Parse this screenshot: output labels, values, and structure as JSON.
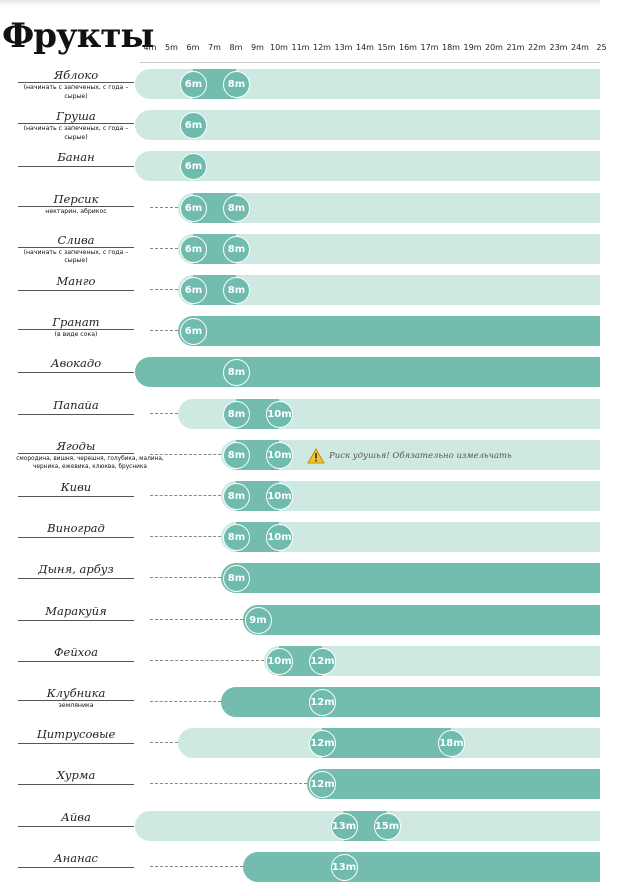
{
  "title": "Фрукты",
  "colors": {
    "light_bar": "#cde9e1",
    "dark_bar": "#74bcae",
    "marker": "#6fbcae"
  },
  "chart_data": {
    "type": "timeline",
    "x_axis_ticks": [
      "4m",
      "5m",
      "6m",
      "7m",
      "8m",
      "9m",
      "10m",
      "11m",
      "12m",
      "13m",
      "14m",
      "15m",
      "16m",
      "17m",
      "18m",
      "19m",
      "20m",
      "21m",
      "22m",
      "23m",
      "24m",
      "25"
    ],
    "rows": [
      {
        "name": "Яблоко",
        "note": "(начинать с запеченых, с года – сырые)",
        "bar_start": 4,
        "bar_color": "light",
        "markers": [
          "6m",
          "8m"
        ]
      },
      {
        "name": "Груша",
        "note": "(начинать с запеченых, с года – сырые)",
        "bar_start": 4,
        "bar_color": "light",
        "markers": [
          "6m"
        ]
      },
      {
        "name": "Банан",
        "note": "",
        "bar_start": 4,
        "bar_color": "light",
        "markers": [
          "6m"
        ]
      },
      {
        "name": "Персик",
        "note": "нектарин, абрикос",
        "bar_start": 6,
        "bar_color": "light",
        "markers": [
          "6m",
          "8m"
        ]
      },
      {
        "name": "Слива",
        "note": "(начинать с запеченых, с года – сырые)",
        "bar_start": 6,
        "bar_color": "light",
        "markers": [
          "6m",
          "8m"
        ]
      },
      {
        "name": "Манго",
        "note": "",
        "bar_start": 6,
        "bar_color": "light",
        "markers": [
          "6m",
          "8m"
        ]
      },
      {
        "name": "Гранат",
        "note": "(в виде сока)",
        "bar_start": 6,
        "bar_color": "dark",
        "markers": [
          "6m"
        ]
      },
      {
        "name": "Авокадо",
        "note": "",
        "bar_start": 4,
        "bar_color": "dark",
        "markers": [
          "8m"
        ]
      },
      {
        "name": "Папайа",
        "note": "",
        "bar_start": 6,
        "bar_color": "light",
        "markers": [
          "8m",
          "10m"
        ]
      },
      {
        "name": "Ягоды",
        "note": "смородина, вишня, черешня, голубика, малина, черника, ежевика, клюква, брусника",
        "bar_start": 8,
        "bar_color": "light",
        "markers": [
          "8m",
          "10m"
        ],
        "warning": "Риск удушья! Обязательно измельчать"
      },
      {
        "name": "Киви",
        "note": "",
        "bar_start": 8,
        "bar_color": "light",
        "markers": [
          "8m",
          "10m"
        ]
      },
      {
        "name": "Виноград",
        "note": "",
        "bar_start": 8,
        "bar_color": "light",
        "markers": [
          "8m",
          "10m"
        ]
      },
      {
        "name": "Дыня, арбуз",
        "note": "",
        "bar_start": 8,
        "bar_color": "dark",
        "markers": [
          "8m"
        ]
      },
      {
        "name": "Маракуйя",
        "note": "",
        "bar_start": 9,
        "bar_color": "dark",
        "markers": [
          "9m"
        ]
      },
      {
        "name": "Фейхоа",
        "note": "",
        "bar_start": 10,
        "bar_color": "light",
        "markers": [
          "10m",
          "12m"
        ]
      },
      {
        "name": "Клубника",
        "note": "земляника",
        "bar_start": 8,
        "bar_color": "dark",
        "markers": [
          "12m"
        ]
      },
      {
        "name": "Цитрусовые",
        "note": "",
        "bar_start": 6,
        "bar_color": "light",
        "markers": [
          "12m",
          "18m"
        ]
      },
      {
        "name": "Хурма",
        "note": "",
        "bar_start": 12,
        "bar_color": "dark",
        "markers": [
          "12m"
        ]
      },
      {
        "name": "Айва",
        "note": "",
        "bar_start": 4,
        "bar_color": "light",
        "markers": [
          "13m",
          "15m"
        ]
      },
      {
        "name": "Ананас",
        "note": "",
        "bar_start": 9,
        "bar_color": "dark",
        "markers": [
          "13m"
        ]
      }
    ]
  }
}
